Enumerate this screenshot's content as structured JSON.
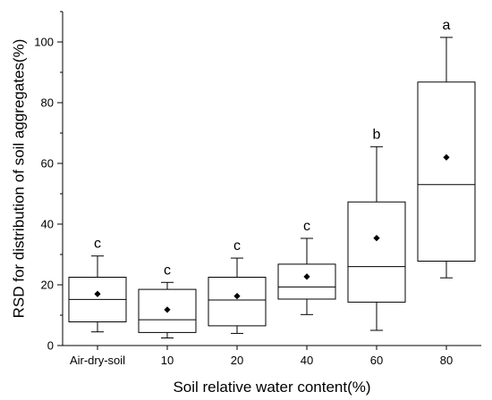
{
  "chart_data": {
    "type": "box",
    "title": "",
    "xlabel": "Soil relative water content(%)",
    "ylabel": "RSD for distribution of soil aggregates(%)",
    "ylim": [
      0,
      110
    ],
    "yticks": [
      0,
      20,
      40,
      60,
      80,
      100
    ],
    "grid": false,
    "categories": [
      "Air-dry-soil",
      "10",
      "20",
      "40",
      "60",
      "80"
    ],
    "boxes": [
      {
        "category": "Air-dry-soil",
        "whisker_low": 4.5,
        "q1": 7.8,
        "median": 15.2,
        "q3": 22.5,
        "whisker_high": 29.5,
        "mean": 17.0,
        "letter": "c"
      },
      {
        "category": "10",
        "whisker_low": 2.5,
        "q1": 4.3,
        "median": 8.5,
        "q3": 18.5,
        "whisker_high": 20.8,
        "mean": 11.8,
        "letter": "c"
      },
      {
        "category": "20",
        "whisker_low": 4.0,
        "q1": 6.5,
        "median": 15.0,
        "q3": 22.5,
        "whisker_high": 28.8,
        "mean": 16.3,
        "letter": "c"
      },
      {
        "category": "40",
        "whisker_low": 10.2,
        "q1": 15.3,
        "median": 19.3,
        "q3": 26.8,
        "whisker_high": 35.3,
        "mean": 22.7,
        "letter": "c"
      },
      {
        "category": "60",
        "whisker_low": 5.0,
        "q1": 14.3,
        "median": 26.0,
        "q3": 47.3,
        "whisker_high": 65.5,
        "mean": 35.4,
        "letter": "b"
      },
      {
        "category": "80",
        "whisker_low": 22.3,
        "q1": 27.8,
        "median": 53.0,
        "q3": 86.8,
        "whisker_high": 101.5,
        "mean": 62.0,
        "letter": "a"
      }
    ]
  }
}
